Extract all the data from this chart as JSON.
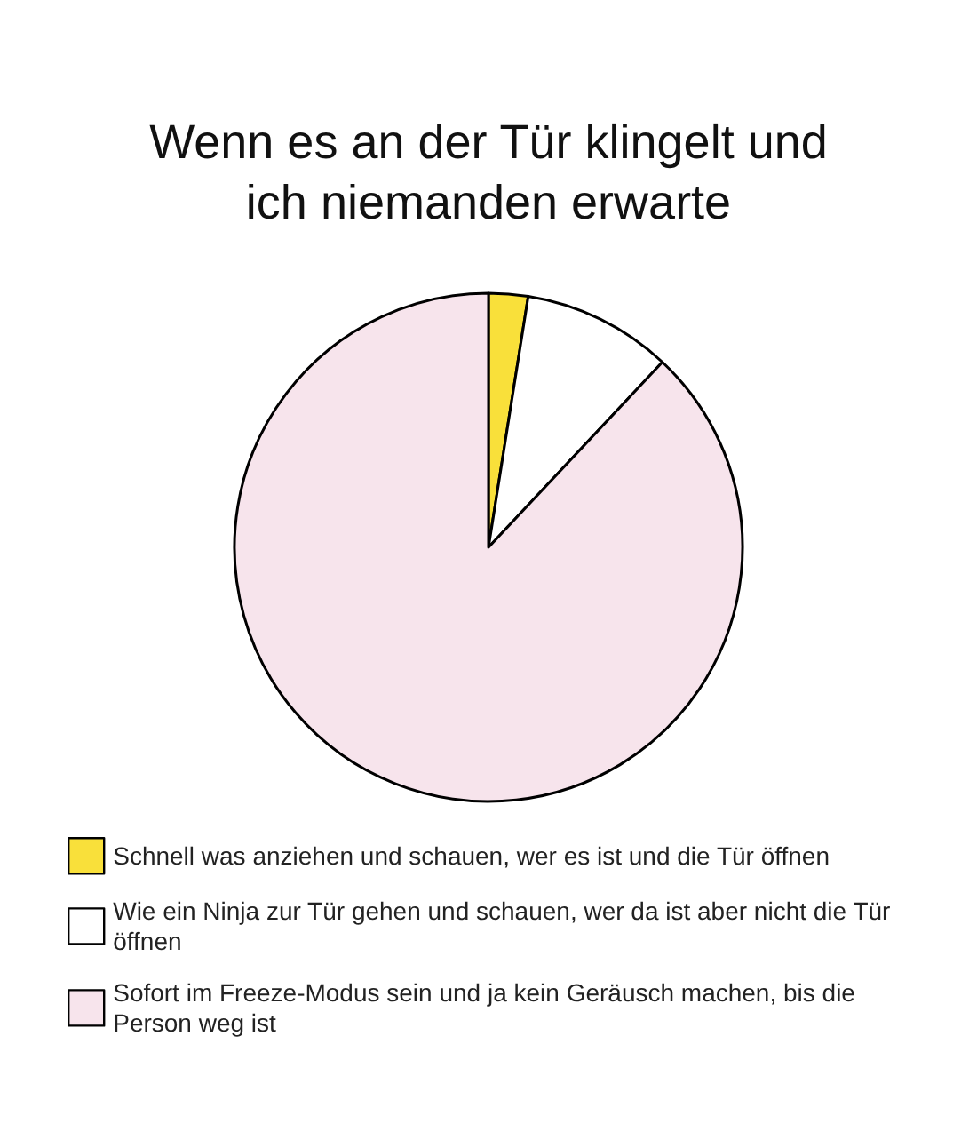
{
  "chart_data": {
    "type": "pie",
    "title": "Wenn es an der Tür klingelt und\nich niemanden erwarte",
    "categories": [
      "Schnell was anziehen und schauen, wer es ist und die Tür öffnen",
      "Wie ein Ninja zur Tür gehen und schauen, wer da ist aber nicht die Tür öffnen",
      "Sofort im Freeze-Modus sein und ja kein Geräusch machen, bis die Person weg ist"
    ],
    "values": [
      2.5,
      9.5,
      88
    ],
    "colors": [
      "#f9e03a",
      "#ffffff",
      "#f7e4ec"
    ],
    "legend": "bottom"
  }
}
